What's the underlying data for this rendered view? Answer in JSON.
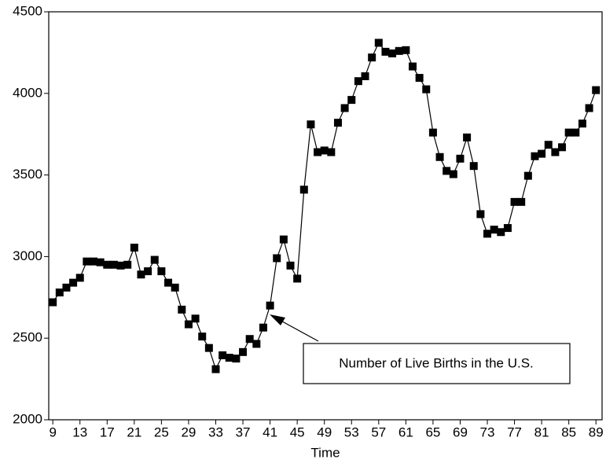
{
  "chart_data": {
    "type": "line",
    "x_label": "Time",
    "annotation": "Number of Live Births in the U.S.",
    "x": [
      9,
      10,
      11,
      12,
      13,
      14,
      15,
      16,
      17,
      18,
      19,
      20,
      21,
      22,
      23,
      24,
      25,
      26,
      27,
      28,
      29,
      30,
      31,
      32,
      33,
      34,
      35,
      36,
      37,
      38,
      39,
      40,
      41,
      42,
      43,
      44,
      45,
      46,
      47,
      48,
      49,
      50,
      51,
      52,
      53,
      54,
      55,
      56,
      57,
      58,
      59,
      60,
      61,
      62,
      63,
      64,
      65,
      66,
      67,
      68,
      69,
      70,
      71,
      72,
      73,
      74,
      75,
      76,
      77,
      78,
      79,
      80,
      81,
      82,
      83,
      84,
      85,
      86,
      87,
      88,
      89
    ],
    "values": [
      2720,
      2780,
      2810,
      2840,
      2870,
      2970,
      2970,
      2965,
      2950,
      2950,
      2945,
      2950,
      3055,
      2890,
      2910,
      2980,
      2910,
      2840,
      2810,
      2675,
      2585,
      2620,
      2510,
      2440,
      2310,
      2395,
      2380,
      2375,
      2415,
      2495,
      2465,
      2565,
      2700,
      2990,
      3105,
      2945,
      2865,
      3410,
      3810,
      3640,
      3650,
      3640,
      3820,
      3910,
      3960,
      4075,
      4105,
      4220,
      4310,
      4255,
      4245,
      4260,
      4265,
      4165,
      4095,
      4025,
      3760,
      3610,
      3525,
      3505,
      3600,
      3730,
      3555,
      3260,
      3140,
      3165,
      3150,
      3175,
      3335,
      3335,
      3495,
      3615,
      3630,
      3685,
      3640,
      3670,
      3760,
      3760,
      3815,
      3910,
      4020
    ],
    "color": "#000000",
    "xlim": [
      8.4,
      89.9
    ],
    "xticks": [
      9,
      13,
      17,
      21,
      25,
      29,
      33,
      37,
      41,
      45,
      49,
      53,
      57,
      61,
      65,
      69,
      73,
      77,
      81,
      85,
      89
    ],
    "ylim": [
      2000,
      4500
    ],
    "yticks": [
      2000,
      2500,
      3000,
      3500,
      4000,
      4500
    ]
  }
}
